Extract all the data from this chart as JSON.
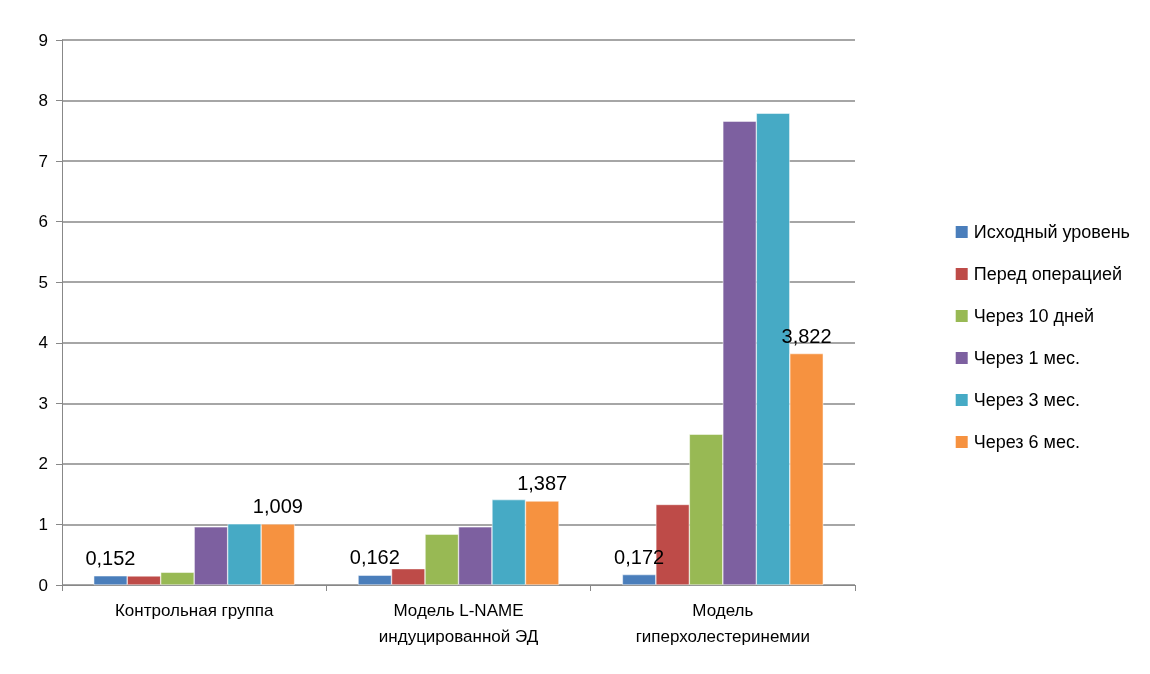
{
  "chart_data": {
    "type": "bar",
    "categories": [
      "Контрольная группа",
      "Модель L-NAME\nиндуцированной ЭД",
      "Модель\nгиперхолестеринемии"
    ],
    "series": [
      {
        "name": "Исходный уровень",
        "color": "#4a7ebb",
        "values": [
          0.152,
          0.162,
          0.172
        ],
        "value_labels": [
          "0,152",
          "0,162",
          "0,172"
        ]
      },
      {
        "name": "Перед операцией",
        "color": "#be4b48",
        "values": [
          0.15,
          0.27,
          1.33
        ]
      },
      {
        "name": "Через 10 дней",
        "color": "#98b954",
        "values": [
          0.21,
          0.84,
          2.49
        ]
      },
      {
        "name": "Через 1 мес.",
        "color": "#7d60a0",
        "values": [
          0.96,
          0.96,
          7.66
        ]
      },
      {
        "name": "Через 3 мес.",
        "color": "#46aac5",
        "values": [
          1.01,
          1.41,
          7.79
        ]
      },
      {
        "name": "Через 6 мес.",
        "color": "#f69240",
        "values": [
          1.009,
          1.387,
          3.822
        ],
        "value_labels": [
          "1,009",
          "1,387",
          "3,822"
        ]
      }
    ],
    "ylim": [
      0,
      9
    ],
    "yticks": [
      0,
      1,
      2,
      3,
      4,
      5,
      6,
      7,
      8,
      9
    ],
    "grid": "y",
    "legend": "right"
  }
}
